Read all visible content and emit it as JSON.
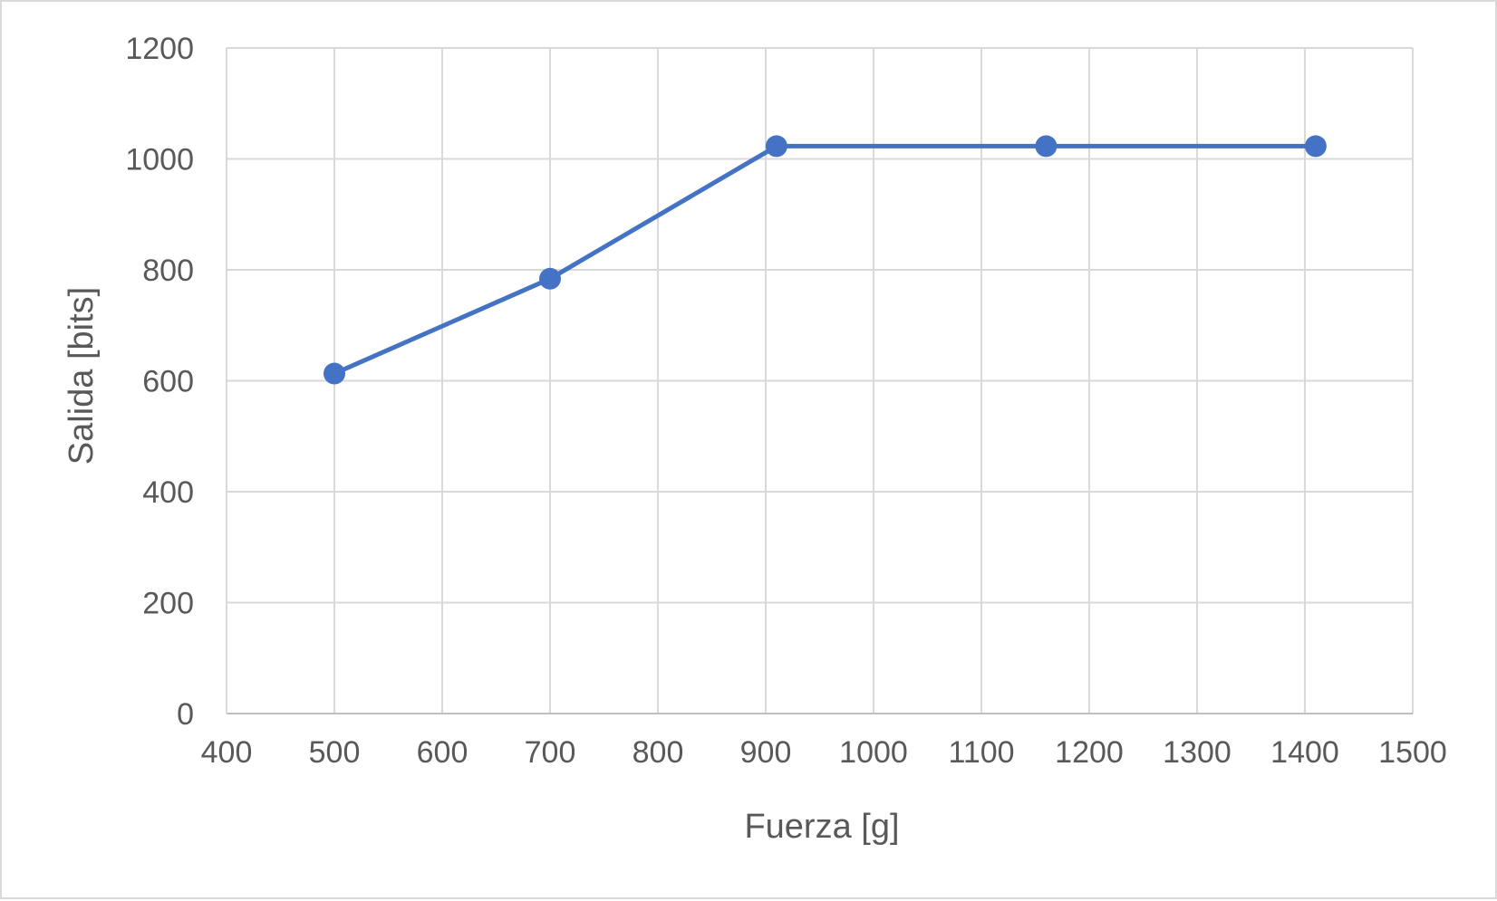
{
  "chart_data": {
    "type": "line",
    "title": "",
    "xlabel": "Fuerza [g]",
    "ylabel": "Salida [bits]",
    "xlim": [
      400,
      1500
    ],
    "ylim": [
      0,
      1200
    ],
    "x_ticks": [
      "400",
      "500",
      "600",
      "700",
      "800",
      "900",
      "1000",
      "1100",
      "1200",
      "1300",
      "1400",
      "1500"
    ],
    "y_ticks": [
      "0",
      "200",
      "400",
      "600",
      "800",
      "1000",
      "1200"
    ],
    "grid": true,
    "legend": "none",
    "series": [
      {
        "color": "#4472c4",
        "x": [
          500,
          700,
          910,
          1160,
          1410
        ],
        "y": [
          613,
          784,
          1023,
          1023,
          1023
        ]
      }
    ]
  }
}
